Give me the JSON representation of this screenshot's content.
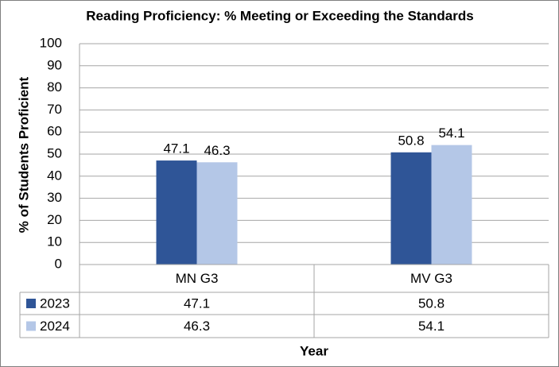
{
  "chart_data": {
    "type": "bar",
    "title": "Reading Proficiency:  % Meeting or Exceeding the Standards",
    "y_label": "% of Students Proficient",
    "x_label": "Year",
    "categories": [
      "MN G3",
      "MV G3"
    ],
    "series": [
      {
        "name": "2023",
        "color": "#2f5597",
        "values": [
          47.1,
          50.8
        ]
      },
      {
        "name": "2024",
        "color": "#b4c7e7",
        "values": [
          46.3,
          54.1
        ]
      }
    ],
    "ylim": [
      0,
      100
    ],
    "yticks": [
      0,
      10,
      20,
      30,
      40,
      50,
      60,
      70,
      80,
      90,
      100
    ],
    "grid": true,
    "data_table": true
  }
}
